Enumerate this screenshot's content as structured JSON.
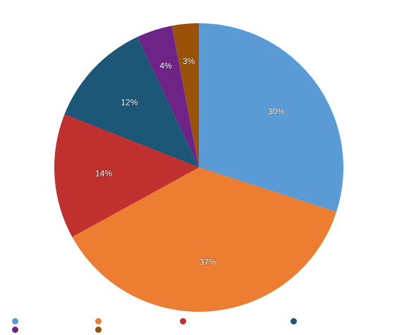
{
  "chart_data": {
    "type": "pie",
    "title": "",
    "slices": [
      {
        "label": "30%",
        "value": 30,
        "color": "#5b9bd5",
        "legend": ""
      },
      {
        "label": "37%",
        "value": 37,
        "color": "#ed7d31",
        "legend": ""
      },
      {
        "label": "14%",
        "value": 14,
        "color": "#c0302f",
        "legend": ""
      },
      {
        "label": "12%",
        "value": 12,
        "color": "#1d5777",
        "legend": ""
      },
      {
        "label": "4%",
        "value": 4,
        "color": "#6e2387",
        "legend": ""
      },
      {
        "label": "3%",
        "value": 3,
        "color": "#9a5208",
        "legend": ""
      }
    ],
    "start_angle_deg": 0,
    "direction": "clockwise",
    "legend_position": "bottom",
    "legend_entries": 6
  }
}
